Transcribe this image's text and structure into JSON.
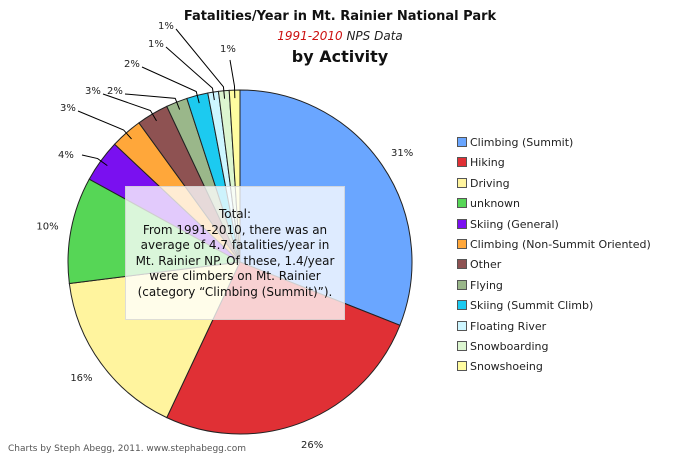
{
  "title": "Fatalities/Year in Mt. Rainier National Park",
  "subtitle_red": "1991-2010",
  "subtitle_rest": " NPS Data",
  "title2": "by Activity",
  "note": {
    "line1": "Total:",
    "line2": "From 1991-2010, there was an",
    "line3": "average of 4.7 fatalities/year in",
    "line4": "Mt. Rainier NP. Of these, 1.4/year",
    "line5": "were climbers on Mt. Rainier",
    "line6": "(category “Climbing (Summit)”)."
  },
  "credit": "Charts by Steph Abegg, 2011. www.stephabegg.com",
  "chart_data": {
    "type": "pie",
    "slices": [
      {
        "label": "Climbing (Summit)",
        "value": 31,
        "display": "31%",
        "color": "#6aa6ff"
      },
      {
        "label": "Hiking",
        "value": 26,
        "display": "26%",
        "color": "#e03035"
      },
      {
        "label": "Driving",
        "value": 16,
        "display": "16%",
        "color": "#fff49e"
      },
      {
        "label": "unknown",
        "value": 10,
        "display": "10%",
        "color": "#56d656"
      },
      {
        "label": "Skiing (General)",
        "value": 4,
        "display": "4%",
        "color": "#7a10f0"
      },
      {
        "label": "Climbing (Non-Summit Oriented)",
        "value": 3,
        "display": "3%",
        "color": "#ffa73a"
      },
      {
        "label": "Other",
        "value": 3,
        "display": "3%",
        "color": "#8e5252"
      },
      {
        "label": "Flying",
        "value": 2,
        "display": "2%",
        "color": "#9ab78a"
      },
      {
        "label": "Skiing (Summit Climb)",
        "value": 2,
        "display": "2%",
        "color": "#1ccaf0"
      },
      {
        "label": "Floating River",
        "value": 1,
        "display": "1%",
        "color": "#cdf6ff"
      },
      {
        "label": "Snowboarding",
        "value": 1,
        "display": "1%",
        "color": "#dcf6d0"
      },
      {
        "label": "Snowshoeing",
        "value": 1,
        "display": "1%",
        "color": "#fffca0"
      }
    ],
    "legend_position": "right"
  }
}
